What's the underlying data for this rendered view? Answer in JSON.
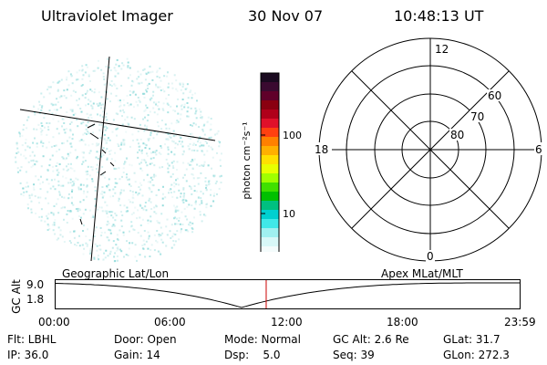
{
  "header": {
    "instrument": "Ultraviolet Imager",
    "date": "30 Nov 07",
    "time": "10:48:13 UT"
  },
  "colorbar": {
    "label": "photon cm⁻²s⁻¹",
    "ticks": [
      "100",
      "10"
    ],
    "colors": [
      "#1a0a20",
      "#3a0a30",
      "#60002a",
      "#8a0010",
      "#b0001a",
      "#e0102a",
      "#ff4010",
      "#ff8000",
      "#ffb000",
      "#ffe000",
      "#e8ff00",
      "#a0ff00",
      "#40e000",
      "#00c000",
      "#00c080",
      "#00d0d0",
      "#40e8e8",
      "#a0f0f0",
      "#d8f8f8",
      "#f4fcfc"
    ]
  },
  "polar": {
    "mlt_labels": [
      "12",
      "18",
      "6",
      "0"
    ],
    "lat_labels": [
      "60",
      "70",
      "80"
    ]
  },
  "timeline": {
    "left_title": "Geographic Lat/Lon",
    "right_title": "Apex MLat/MLT",
    "axis_label": "GC Alt",
    "y_ticks": [
      "9.0",
      "1.8"
    ],
    "x_ticks": [
      "00:00",
      "06:00",
      "12:00",
      "18:00",
      "23:59"
    ],
    "current_time_fraction": 0.4529,
    "marker_color": "#cc0000"
  },
  "info": {
    "row1": [
      "Flt: LBHL",
      "Door: Open",
      "Mode: Normal",
      "GC Alt: 2.6 Re",
      "GLat: 31.7"
    ],
    "row2": [
      "IP: 36.0",
      "Gain: 14",
      "Dsp:    5.0",
      "Seq: 39",
      "GLon: 272.3"
    ]
  }
}
